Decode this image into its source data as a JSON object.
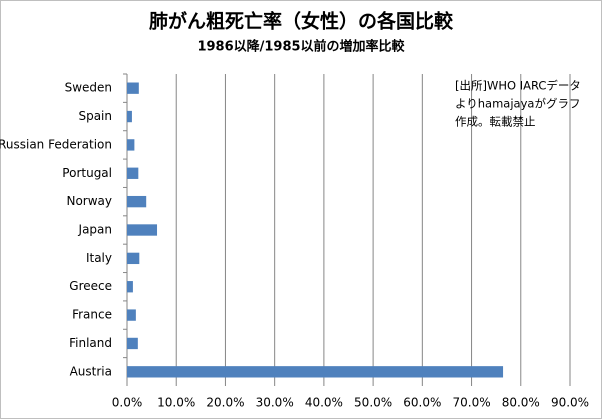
{
  "chart_data": {
    "type": "hbar",
    "title": "肺がん粗死亡率（女性）の各国比較",
    "subtitle": "1986以降/1985以前の増加率比較",
    "annotation": [
      "[出所]WHO IARCデータ",
      "よりhamajayaがグラフ",
      "作成。転載禁止"
    ],
    "categories": [
      "Sweden",
      "Spain",
      "Russian Federation",
      "Portugal",
      "Norway",
      "Japan",
      "Italy",
      "Greece",
      "France",
      "Finland",
      "Austria"
    ],
    "values": [
      2.4,
      1.0,
      1.5,
      2.3,
      3.9,
      6.1,
      2.5,
      1.2,
      1.8,
      2.2,
      76.4
    ],
    "color": "#4f81bd",
    "xlim": [
      0,
      90
    ],
    "xticks": [
      {
        "value": 0,
        "label": "0.0%"
      },
      {
        "value": 10,
        "label": "10.0%"
      },
      {
        "value": 20,
        "label": "20.0%"
      },
      {
        "value": 30,
        "label": "30.0%"
      },
      {
        "value": 40,
        "label": "40.0%"
      },
      {
        "value": 50,
        "label": "50.0%"
      },
      {
        "value": 60,
        "label": "60.0%"
      },
      {
        "value": 70,
        "label": "70.0%"
      },
      {
        "value": 80,
        "label": "80.0%"
      },
      {
        "value": 90,
        "label": "90.0%"
      }
    ],
    "grid": true
  }
}
